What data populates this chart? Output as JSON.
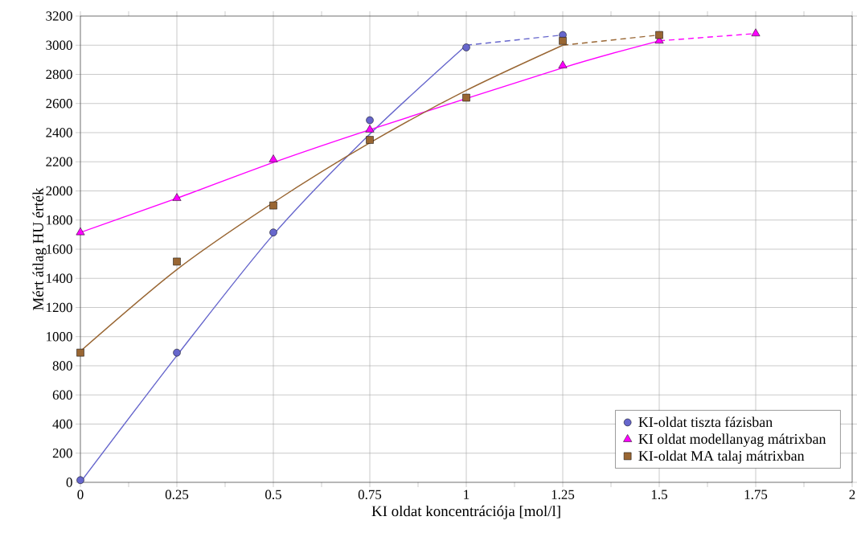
{
  "chart_data": {
    "type": "scatter",
    "xlabel": "KI oldat koncentrációja [mol/l]",
    "ylabel": "Mért átlag HU érték",
    "xlim": [
      0,
      2
    ],
    "xticks": [
      0,
      0.25,
      0.5,
      0.75,
      1,
      1.25,
      1.5,
      1.75,
      2
    ],
    "ylim": [
      0,
      3200
    ],
    "yticks": [
      0,
      200,
      400,
      600,
      800,
      1000,
      1200,
      1400,
      1600,
      1800,
      2000,
      2200,
      2400,
      2600,
      2800,
      3000,
      3200
    ],
    "grid": true,
    "legend": "bottom right",
    "series": [
      {
        "name": "KI-oldat tiszta fázisban",
        "marker": "circle",
        "color": "#6666cc",
        "x": [
          0,
          0.25,
          0.5,
          0.75,
          1,
          1.25
        ],
        "values": [
          15,
          890,
          1715,
          2485,
          2985,
          3070
        ]
      },
      {
        "name": "KI oldat modellanyag mátrixban",
        "marker": "triangle",
        "color": "#ff00ff",
        "x": [
          0,
          0.25,
          0.5,
          0.75,
          1,
          1.25,
          1.5,
          1.75
        ],
        "values": [
          1715,
          1950,
          2215,
          2420,
          null,
          2860,
          3030,
          3080
        ]
      },
      {
        "name": "KI-oldat MA talaj mátrixban",
        "marker": "square",
        "color": "#996633",
        "x": [
          0,
          0.25,
          0.5,
          0.75,
          1,
          1.25,
          1.5
        ],
        "values": [
          890,
          1515,
          1900,
          2350,
          2640,
          3030,
          3070
        ]
      },
      {
        "type": "line",
        "marker": "none",
        "line_style": "solid",
        "color": "#6666cc",
        "x": [
          0,
          0.25,
          0.5,
          0.75,
          1
        ],
        "values": [
          0,
          870,
          1700,
          2390,
          3000
        ]
      },
      {
        "type": "line",
        "marker": "none",
        "line_style": "dashed",
        "color": "#6666cc",
        "x": [
          1,
          1.25
        ],
        "values": [
          3000,
          3070
        ]
      },
      {
        "type": "line",
        "marker": "none",
        "line_style": "solid",
        "color": "#ff00ff",
        "x": [
          0,
          0.25,
          0.5,
          0.75,
          1.25,
          1.5
        ],
        "values": [
          1715,
          1950,
          2195,
          2420,
          2845,
          3030
        ]
      },
      {
        "type": "line",
        "marker": "none",
        "line_style": "dashed",
        "color": "#ff00ff",
        "x": [
          1.5,
          1.75
        ],
        "values": [
          3030,
          3080
        ]
      },
      {
        "type": "line",
        "marker": "none",
        "line_style": "solid",
        "color": "#996633",
        "x": [
          0,
          0.25,
          0.5,
          0.75,
          1,
          1.25
        ],
        "values": [
          900,
          1460,
          1920,
          2330,
          2690,
          3000
        ]
      },
      {
        "type": "line",
        "marker": "none",
        "line_style": "dashed",
        "color": "#996633",
        "x": [
          1.25,
          1.5
        ],
        "values": [
          3000,
          3070
        ]
      }
    ]
  }
}
